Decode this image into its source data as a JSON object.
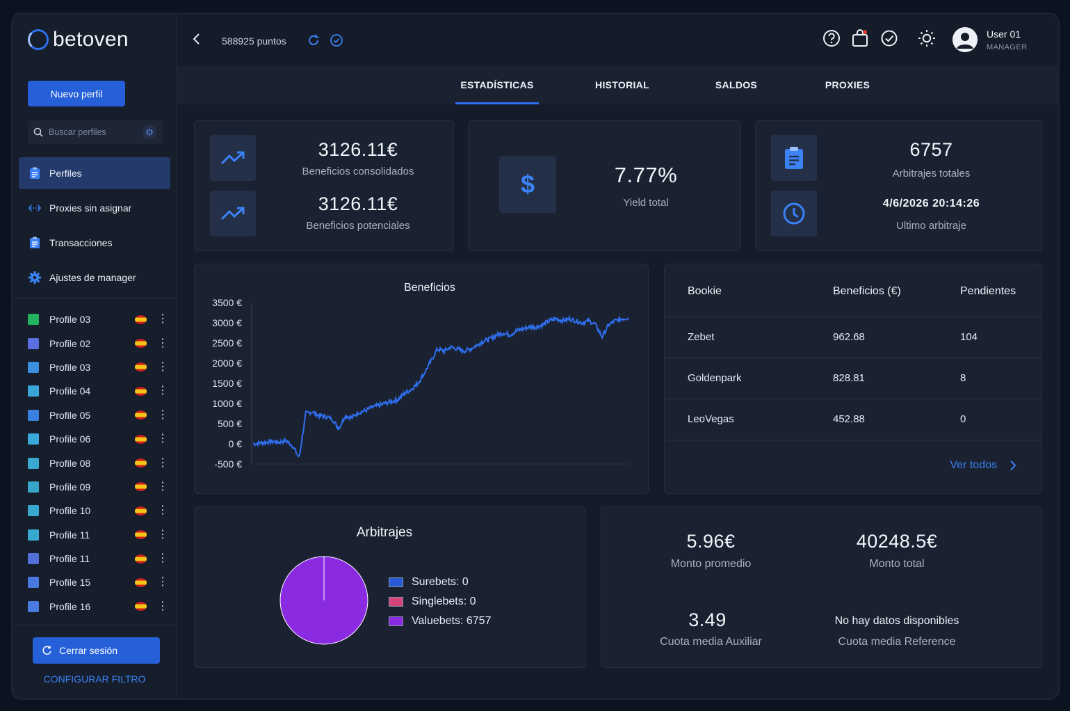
{
  "brand": {
    "name": "betoven"
  },
  "sidebar": {
    "new_profile": "Nuevo perfil",
    "search_placeholder": "Buscar perfiles",
    "nav": [
      {
        "label": "Perfiles",
        "icon": "clipboard-icon",
        "active": true
      },
      {
        "label": "Proxies sin asignar",
        "icon": "arrows-icon",
        "active": false
      },
      {
        "label": "Transacciones",
        "icon": "clipboard-icon",
        "active": false
      },
      {
        "label": "Ajustes de manager",
        "icon": "gear-icon",
        "active": false
      }
    ],
    "profiles": [
      {
        "name": "Profile 03",
        "color": "#22b35e"
      },
      {
        "name": "Profile 02",
        "color": "#5b6ee0"
      },
      {
        "name": "Profile 03",
        "color": "#3d8fe0"
      },
      {
        "name": "Profile 04",
        "color": "#3aa6d8"
      },
      {
        "name": "Profile 05",
        "color": "#3a80e0"
      },
      {
        "name": "Profile 06",
        "color": "#3aa8d8"
      },
      {
        "name": "Profile 08",
        "color": "#3aa8d0"
      },
      {
        "name": "Profile 09",
        "color": "#38a6c9"
      },
      {
        "name": "Profile 10",
        "color": "#38a8d0"
      },
      {
        "name": "Profile 11",
        "color": "#38a8d0"
      },
      {
        "name": "Profile 11",
        "color": "#5270d8"
      },
      {
        "name": "Profile 15",
        "color": "#4a78e0"
      },
      {
        "name": "Profile 16",
        "color": "#4a7ae0"
      }
    ],
    "logout": "Cerrar sesión",
    "config_filter": "CONFIGURAR FILTRO"
  },
  "topbar": {
    "points": "588925 puntos",
    "user_name": "User 01",
    "user_role": "MANAGER"
  },
  "tabs": [
    {
      "label": "ESTADÍSTICAS",
      "active": true
    },
    {
      "label": "HISTORIAL",
      "active": false
    },
    {
      "label": "SALDOS",
      "active": false
    },
    {
      "label": "PROXIES",
      "active": false
    }
  ],
  "stats": {
    "consolidated_value": "3126.11€",
    "consolidated_label": "Beneficios consolidados",
    "potential_value": "3126.11€",
    "potential_label": "Beneficios potenciales",
    "yield_value": "7.77%",
    "yield_label": "Yield total",
    "arb_total_value": "6757",
    "arb_total_label": "Arbitrajes totales",
    "last_arb_value": "4/6/2026 20:14:26",
    "last_arb_label": "Ultimo arbitraje"
  },
  "chart_data": [
    {
      "type": "line",
      "title": "Beneficios",
      "ylim": [
        -500,
        3500
      ],
      "yticks": [
        "3500 €",
        "3000 €",
        "2500 €",
        "2000 €",
        "1500 €",
        "1000 €",
        "500 €",
        "0 €",
        "-500 €"
      ],
      "series": [
        {
          "values": [
            0,
            20,
            40,
            60,
            40,
            80,
            -50,
            -350,
            750,
            800,
            700,
            680,
            620,
            380,
            700,
            650,
            780,
            820,
            900,
            950,
            1000,
            1050,
            1100,
            1250,
            1350,
            1500,
            1750,
            2050,
            2350,
            2300,
            2400,
            2350,
            2300,
            2350,
            2450,
            2550,
            2600,
            2700,
            2750,
            2700,
            2800,
            2850,
            2900,
            2900,
            2950,
            3050,
            3100,
            3050,
            3100,
            3050,
            3000,
            3050,
            2950,
            2650,
            2950,
            3050,
            3100,
            3126
          ]
        }
      ],
      "color": "#2f6ff0"
    },
    {
      "type": "pie",
      "title": "Arbitrajes",
      "categories": [
        "Surebets",
        "Singlebets",
        "Valuebets"
      ],
      "values": [
        0,
        0,
        6757
      ],
      "colors": [
        "#2a5bd7",
        "#d6457a",
        "#8a2be2"
      ],
      "legend": [
        "Surebets: 0",
        "Singlebets: 0",
        "Valuebets: 6757"
      ]
    }
  ],
  "bookies": {
    "headers": [
      "Bookie",
      "Beneficios (€)",
      "Pendientes"
    ],
    "rows": [
      [
        "Zebet",
        "962.68",
        "104"
      ],
      [
        "Goldenpark",
        "828.81",
        "8"
      ],
      [
        "LeoVegas",
        "452.88",
        "0"
      ]
    ],
    "see_all": "Ver todos"
  },
  "summary": {
    "avg_amount_value": "5.96€",
    "avg_amount_label": "Monto promedio",
    "total_amount_value": "40248.5€",
    "total_amount_label": "Monto total",
    "aux_odds_value": "3.49",
    "aux_odds_label": "Cuota media Auxiliar",
    "ref_odds_value": "No hay datos disponibles",
    "ref_odds_label": "Cuota media Reference"
  }
}
